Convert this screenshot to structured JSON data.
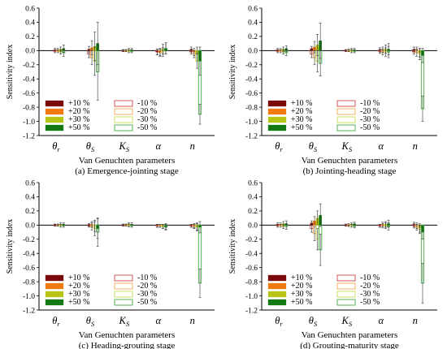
{
  "chart_data": {
    "type": "bar",
    "ylabel": "Sensitivity index",
    "xlabel": "Van Genuchten parameters",
    "ylim": [
      -1.2,
      0.6
    ],
    "yticks": [
      "0.6",
      "0.4",
      "0.2",
      "0.0",
      "-0.2",
      "-0.4",
      "-0.6",
      "-0.8",
      "-1.0",
      "-1.2"
    ],
    "categories": [
      {
        "main": "θ",
        "sub": "r"
      },
      {
        "main": "θ",
        "sub": "S"
      },
      {
        "main": "K",
        "sub": "S"
      },
      {
        "main": "α",
        "sub": ""
      },
      {
        "main": "n",
        "sub": ""
      }
    ],
    "legend": [
      "+10 %",
      "-10 %",
      "+20 %",
      "-20 %",
      "+30 %",
      "-30 %",
      "+50 %",
      "-50 %"
    ],
    "series": [
      {
        "name": "+10 %",
        "color": "#7a0a0a",
        "filled": true
      },
      {
        "name": "+20 %",
        "color": "#f07a10",
        "filled": true
      },
      {
        "name": "+30 %",
        "color": "#b8c416",
        "filled": true
      },
      {
        "name": "+50 %",
        "color": "#147a14",
        "filled": true
      },
      {
        "name": "-10 %",
        "color": "#c83030",
        "filled": false
      },
      {
        "name": "-20 %",
        "color": "#f0a040",
        "filled": false
      },
      {
        "name": "-30 %",
        "color": "#c8d440",
        "filled": false
      },
      {
        "name": "-50 %",
        "color": "#30a030",
        "filled": false
      }
    ],
    "panels": [
      {
        "caption": "(a) Emergence-jointing stage",
        "values": [
          [
            0.01,
            0.01,
            0.02,
            0.03,
            -0.01,
            -0.01,
            -0.02,
            -0.03
          ],
          [
            0.02,
            0.04,
            0.06,
            0.1,
            -0.05,
            -0.1,
            -0.15,
            -0.3
          ],
          [
            0.005,
            0.005,
            0.01,
            0.01,
            -0.005,
            -0.005,
            -0.01,
            -0.01
          ],
          [
            -0.02,
            -0.02,
            0.02,
            0.03,
            -0.02,
            -0.03,
            -0.02,
            0.03
          ],
          [
            0.02,
            -0.02,
            -0.05,
            -0.15,
            -0.02,
            -0.05,
            -0.15,
            -0.9
          ]
        ],
        "errors": [
          [
            0.02,
            0.02,
            0.03,
            0.05,
            0.02,
            0.02,
            0.03,
            0.05
          ],
          [
            0.04,
            0.1,
            0.2,
            0.3,
            0.05,
            0.1,
            0.2,
            0.4
          ],
          [
            0.01,
            0.01,
            0.02,
            0.02,
            0.01,
            0.01,
            0.02,
            0.02
          ],
          [
            0.04,
            0.05,
            0.07,
            0.08,
            0.04,
            0.05,
            0.06,
            0.08
          ],
          [
            0.03,
            0.05,
            0.1,
            0.2,
            0.03,
            0.05,
            0.1,
            0.14
          ]
        ]
      },
      {
        "caption": "(b) Jointing-heading stage",
        "values": [
          [
            0.01,
            0.01,
            0.02,
            0.03,
            -0.01,
            -0.01,
            -0.02,
            -0.03
          ],
          [
            0.03,
            0.05,
            0.08,
            0.14,
            -0.05,
            -0.1,
            -0.15,
            -0.18
          ],
          [
            0.005,
            0.01,
            0.01,
            0.01,
            -0.005,
            -0.005,
            -0.01,
            -0.01
          ],
          [
            0.01,
            0.01,
            0.02,
            0.02,
            -0.01,
            -0.02,
            -0.02,
            -0.02
          ],
          [
            0.02,
            0.01,
            -0.03,
            -0.07,
            -0.02,
            -0.03,
            -0.05,
            -0.82
          ]
        ],
        "errors": [
          [
            0.02,
            0.02,
            0.03,
            0.04,
            0.02,
            0.02,
            0.03,
            0.04
          ],
          [
            0.03,
            0.08,
            0.15,
            0.25,
            0.05,
            0.1,
            0.15,
            0.18
          ],
          [
            0.01,
            0.01,
            0.02,
            0.02,
            0.01,
            0.01,
            0.02,
            0.02
          ],
          [
            0.03,
            0.04,
            0.06,
            0.08,
            0.03,
            0.04,
            0.06,
            0.08
          ],
          [
            0.03,
            0.04,
            0.06,
            0.1,
            0.03,
            0.05,
            0.08,
            0.18
          ]
        ]
      },
      {
        "caption": "(c) Heading-grouting stage",
        "values": [
          [
            0.005,
            0.005,
            0.01,
            0.01,
            -0.005,
            -0.005,
            -0.01,
            -0.01
          ],
          [
            0.005,
            0.01,
            -0.01,
            -0.05,
            -0.01,
            -0.02,
            -0.05,
            -0.1
          ],
          [
            0.005,
            0.005,
            0.01,
            0.01,
            -0.005,
            -0.005,
            -0.005,
            -0.01
          ],
          [
            -0.01,
            -0.01,
            -0.02,
            -0.02,
            -0.01,
            -0.01,
            -0.02,
            -0.03
          ],
          [
            -0.01,
            -0.01,
            -0.02,
            -0.03,
            -0.01,
            -0.02,
            -0.03,
            -0.82
          ]
        ],
        "errors": [
          [
            0.01,
            0.01,
            0.02,
            0.02,
            0.01,
            0.01,
            0.02,
            0.02
          ],
          [
            0.02,
            0.04,
            0.08,
            0.14,
            0.02,
            0.05,
            0.1,
            0.2
          ],
          [
            0.01,
            0.01,
            0.02,
            0.02,
            0.01,
            0.01,
            0.02,
            0.02
          ],
          [
            0.02,
            0.02,
            0.03,
            0.04,
            0.02,
            0.02,
            0.03,
            0.04
          ],
          [
            0.02,
            0.03,
            0.05,
            0.08,
            0.02,
            0.03,
            0.05,
            0.2
          ]
        ]
      },
      {
        "caption": "(d) Grouting-maturity stage",
        "values": [
          [
            0.01,
            0.01,
            0.02,
            0.02,
            -0.01,
            -0.01,
            -0.02,
            -0.02
          ],
          [
            0.03,
            0.06,
            0.1,
            0.14,
            -0.05,
            -0.12,
            -0.2,
            -0.35
          ],
          [
            0.005,
            0.01,
            0.01,
            0.02,
            -0.005,
            -0.01,
            -0.01,
            -0.02
          ],
          [
            -0.01,
            0.01,
            0.01,
            0.02,
            -0.01,
            -0.01,
            -0.01,
            -0.02
          ],
          [
            0.01,
            -0.01,
            -0.04,
            -0.1,
            -0.01,
            -0.03,
            -0.06,
            -0.82
          ]
        ],
        "errors": [
          [
            0.02,
            0.02,
            0.03,
            0.04,
            0.02,
            0.02,
            0.03,
            0.04
          ],
          [
            0.03,
            0.06,
            0.1,
            0.16,
            0.05,
            0.1,
            0.15,
            0.22
          ],
          [
            0.01,
            0.01,
            0.02,
            0.02,
            0.01,
            0.01,
            0.02,
            0.02
          ],
          [
            0.02,
            0.03,
            0.04,
            0.05,
            0.02,
            0.03,
            0.04,
            0.05
          ],
          [
            0.03,
            0.04,
            0.06,
            0.1,
            0.03,
            0.04,
            0.06,
            0.28
          ]
        ]
      }
    ]
  }
}
